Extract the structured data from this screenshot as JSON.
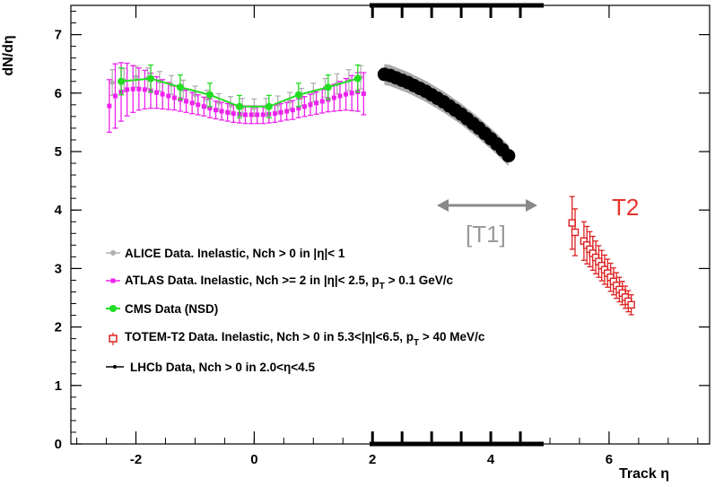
{
  "chart_data": {
    "type": "scatter",
    "xlabel": "Track η",
    "ylabel": "dN/dη",
    "xlim": [
      -3.1,
      7.7
    ],
    "ylim": [
      0,
      7.5
    ],
    "xticks": [
      -2,
      0,
      2,
      4,
      6
    ],
    "yticks": [
      0,
      1,
      2,
      3,
      4,
      5,
      6,
      7
    ],
    "grid": false,
    "legend_position": "left-middle",
    "series": [
      {
        "name": "ALICE Data. Inelastic, Nch > 0 in |η|< 1",
        "color": "#b0b0b0",
        "marker": "circle",
        "x": [
          -2.4,
          -2.2,
          -2.0,
          -1.8,
          -1.6,
          -1.4,
          -1.2,
          -1.0,
          -0.8,
          -0.6,
          -0.4,
          -0.2,
          0.0,
          0.2,
          0.4,
          0.6,
          0.8,
          1.0,
          1.2,
          1.4,
          1.6,
          1.8
        ],
        "y": [
          6.18,
          6.22,
          6.28,
          6.25,
          6.2,
          6.14,
          6.06,
          5.97,
          5.9,
          5.84,
          5.79,
          5.76,
          5.75,
          5.76,
          5.8,
          5.86,
          5.93,
          6.01,
          6.09,
          6.16,
          6.22,
          6.27
        ],
        "err": [
          0.22,
          0.2,
          0.18,
          0.18,
          0.17,
          0.16,
          0.16,
          0.15,
          0.15,
          0.15,
          0.15,
          0.15,
          0.15,
          0.15,
          0.15,
          0.15,
          0.15,
          0.16,
          0.16,
          0.17,
          0.18,
          0.2
        ]
      },
      {
        "name": "ATLAS Data. Inelastic, Nch >= 2 in |η|< 2.5, pT > 0.1 GeV/c",
        "color": "#ee22ee",
        "marker": "square",
        "x": [
          -2.45,
          -2.35,
          -2.25,
          -2.15,
          -2.05,
          -1.95,
          -1.85,
          -1.75,
          -1.65,
          -1.55,
          -1.45,
          -1.35,
          -1.25,
          -1.15,
          -1.05,
          -0.95,
          -0.85,
          -0.75,
          -0.65,
          -0.55,
          -0.45,
          -0.35,
          -0.25,
          -0.15,
          -0.05,
          0.05,
          0.15,
          0.25,
          0.35,
          0.45,
          0.55,
          0.65,
          0.75,
          0.85,
          0.95,
          1.05,
          1.15,
          1.25,
          1.35,
          1.45,
          1.55,
          1.65,
          1.75,
          1.85
        ],
        "y": [
          5.78,
          5.95,
          6.02,
          6.06,
          6.07,
          6.07,
          6.06,
          6.04,
          6.01,
          5.98,
          5.95,
          5.92,
          5.89,
          5.86,
          5.83,
          5.8,
          5.77,
          5.74,
          5.71,
          5.69,
          5.67,
          5.65,
          5.64,
          5.63,
          5.63,
          5.63,
          5.63,
          5.64,
          5.65,
          5.67,
          5.69,
          5.71,
          5.74,
          5.77,
          5.8,
          5.83,
          5.86,
          5.89,
          5.92,
          5.95,
          5.98,
          6.0,
          6.02,
          5.99
        ],
        "err": [
          0.45,
          0.55,
          0.5,
          0.45,
          0.4,
          0.36,
          0.33,
          0.3,
          0.27,
          0.25,
          0.23,
          0.21,
          0.2,
          0.19,
          0.18,
          0.17,
          0.16,
          0.16,
          0.15,
          0.15,
          0.15,
          0.15,
          0.15,
          0.15,
          0.15,
          0.15,
          0.15,
          0.15,
          0.15,
          0.15,
          0.15,
          0.16,
          0.16,
          0.17,
          0.18,
          0.19,
          0.2,
          0.21,
          0.23,
          0.25,
          0.27,
          0.3,
          0.33,
          0.36
        ]
      },
      {
        "name": "CMS Data (NSD)",
        "color": "#22dd22",
        "marker": "circle",
        "x": [
          -2.25,
          -1.75,
          -1.25,
          -0.75,
          -0.25,
          0.25,
          0.75,
          1.25,
          1.75
        ],
        "y": [
          6.2,
          6.25,
          6.1,
          5.97,
          5.77,
          5.77,
          5.97,
          6.1,
          6.25
        ],
        "err": [
          0.23,
          0.23,
          0.21,
          0.2,
          0.19,
          0.19,
          0.2,
          0.21,
          0.23
        ]
      },
      {
        "name": "TOTEM-T2 Data. Inelastic, Nch > 0 in 5.3<|η|<6.5, pT > 40 MeV/c",
        "color": "#dd2222",
        "marker": "open-square",
        "x": [
          5.375,
          5.425,
          5.575,
          5.625,
          5.675,
          5.725,
          5.775,
          5.825,
          5.875,
          5.925,
          5.975,
          6.025,
          6.075,
          6.125,
          6.175,
          6.225,
          6.275,
          6.325,
          6.375
        ],
        "y": [
          3.78,
          3.62,
          3.47,
          3.4,
          3.33,
          3.26,
          3.19,
          3.12,
          3.05,
          2.98,
          2.92,
          2.85,
          2.78,
          2.71,
          2.64,
          2.58,
          2.51,
          2.44,
          2.38
        ],
        "err": [
          0.45,
          0.4,
          0.33,
          0.32,
          0.3,
          0.29,
          0.28,
          0.27,
          0.26,
          0.25,
          0.24,
          0.24,
          0.23,
          0.22,
          0.21,
          0.2,
          0.19,
          0.18,
          0.17
        ]
      },
      {
        "name": "LHCb Data, Nch > 0 in 2.0<η<4.5",
        "color": "#000000",
        "marker": "circle",
        "x": [
          2.2,
          2.3,
          2.4,
          2.5,
          2.6,
          2.7,
          2.8,
          2.9,
          3.0,
          3.1,
          3.2,
          3.3,
          3.4,
          3.5,
          3.6,
          3.7,
          3.8,
          3.9,
          4.0,
          4.1,
          4.2,
          4.3
        ],
        "y": [
          6.32,
          6.3,
          6.26,
          6.22,
          6.18,
          6.13,
          6.08,
          6.03,
          5.97,
          5.91,
          5.85,
          5.78,
          5.71,
          5.64,
          5.56,
          5.48,
          5.4,
          5.31,
          5.22,
          5.13,
          5.03,
          4.93
        ],
        "band": 0.18
      }
    ],
    "annotations": [
      {
        "text": "[T1]",
        "color": "#9a9a9a",
        "arrow_from_x": 3.05,
        "arrow_to_x": 4.7,
        "arrow_y": 3.95
      },
      {
        "text": "T2",
        "color": "#e8322b"
      }
    ]
  },
  "legend": {
    "alice": "ALICE Data. Inelastic, Nch > 0 in |η|< 1",
    "atlas_a": "ATLAS Data. Inelastic, Nch >= 2 in  |η|< 2.5, p",
    "atlas_sub": "T",
    "atlas_b": " > 0.1 GeV/c",
    "cms": "CMS Data (NSD)",
    "totem_a": "TOTEM-T2 Data. Inelastic, Nch > 0 in 5.3<|η|<6.5, p",
    "totem_sub": "T",
    "totem_b": " > 40 MeV/c",
    "lhcb": "LHCb Data, Nch > 0 in 2.0<η<4.5"
  },
  "labels": {
    "xaxis_title": "Track η",
    "yaxis_title": "dN/dη",
    "t1": "[T1]",
    "t2": "T2"
  }
}
